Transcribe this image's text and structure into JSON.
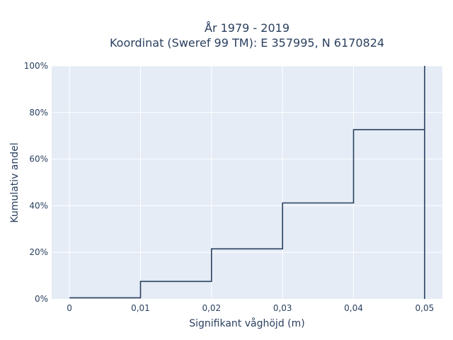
{
  "chart_data": {
    "type": "line",
    "shape": "step",
    "title_line1": "År 1979 - 2019",
    "title_line2": "Koordinat (Sweref 99 TM): E 357995, N 6170824",
    "xlabel": "Signifikant våghöjd (m)",
    "ylabel": "Kumulativ andel",
    "xlim": [
      -0.0025,
      0.0525
    ],
    "ylim": [
      0,
      100
    ],
    "x_ticks": [
      0,
      0.01,
      0.02,
      0.03,
      0.04,
      0.05
    ],
    "x_tick_labels": [
      "0",
      "0,01",
      "0,02",
      "0,03",
      "0,04",
      "0,05"
    ],
    "y_ticks": [
      0,
      20,
      40,
      60,
      80,
      100
    ],
    "y_tick_labels": [
      "0%",
      "20%",
      "40%",
      "60%",
      "80%",
      "100%"
    ],
    "grid": true,
    "series": [
      {
        "x": [
          0,
          0.01,
          0.01,
          0.02,
          0.02,
          0.03,
          0.03,
          0.04,
          0.04,
          0.05,
          0.05,
          0.05
        ],
        "y": [
          0.5,
          0.5,
          7.5,
          7.5,
          21.5,
          21.5,
          41.2,
          41.2,
          72.6,
          72.6,
          100,
          0
        ]
      }
    ],
    "colors": {
      "plot_bg": "#e5ecf6",
      "grid": "#ffffff",
      "line": "#2a3f5f",
      "text": "#2a3f5f"
    }
  }
}
